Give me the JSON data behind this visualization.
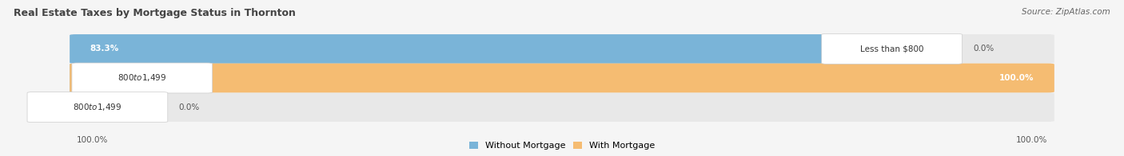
{
  "title": "Real Estate Taxes by Mortgage Status in Thornton",
  "source": "Source: ZipAtlas.com",
  "rows": [
    {
      "label": "Less than $800",
      "without_mortgage": 83.3,
      "with_mortgage": 0.0,
      "wm_label_inside": true,
      "wt_label_inside": false
    },
    {
      "label": "$800 to $1,499",
      "without_mortgage": 6.1,
      "with_mortgage": 100.0,
      "wm_label_inside": false,
      "wt_label_inside": true
    },
    {
      "label": "$800 to $1,499",
      "without_mortgage": 1.5,
      "with_mortgage": 0.0,
      "wm_label_inside": false,
      "wt_label_inside": false
    }
  ],
  "color_without": "#7ab4d8",
  "color_with": "#f5bc72",
  "bg_bar": "#e8e8e8",
  "bg_figure": "#f5f5f5",
  "label_bg": "#ffffff",
  "legend_labels": [
    "Without Mortgage",
    "With Mortgage"
  ],
  "axis_label_left": "100.0%",
  "axis_label_right": "100.0%"
}
